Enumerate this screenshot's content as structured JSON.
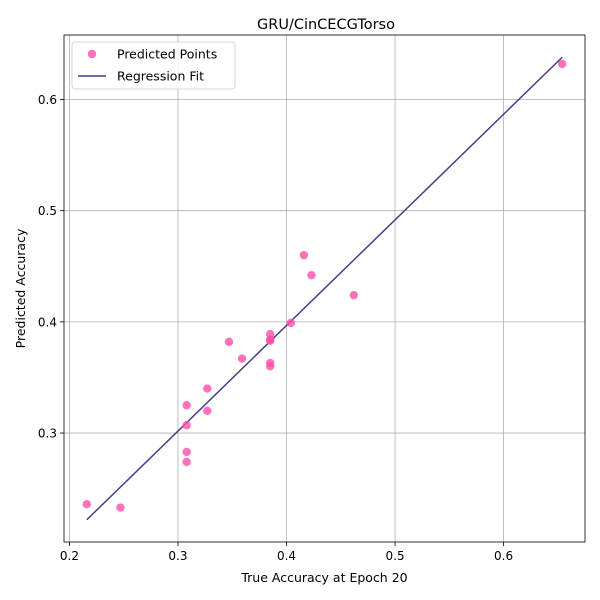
{
  "chart_data": {
    "type": "scatter",
    "title": "GRU/CinCECGTorso",
    "xlabel": "True Accuracy at Epoch 20",
    "ylabel": "Predicted Accuracy",
    "xlim": [
      0.195,
      0.675
    ],
    "ylim": [
      0.202,
      0.658
    ],
    "xticks": [
      0.2,
      0.3,
      0.4,
      0.5,
      0.6
    ],
    "yticks": [
      0.3,
      0.4,
      0.5,
      0.6
    ],
    "xtick_labels": [
      "0.2",
      "0.3",
      "0.4",
      "0.5",
      "0.6"
    ],
    "ytick_labels": [
      "0.3",
      "0.4",
      "0.5",
      "0.6"
    ],
    "grid": true,
    "legend_position": "top-left",
    "series": [
      {
        "name": "Predicted Points",
        "kind": "scatter",
        "color": "#ff4da6",
        "points": [
          [
            0.216,
            0.236
          ],
          [
            0.247,
            0.233
          ],
          [
            0.308,
            0.274
          ],
          [
            0.308,
            0.283
          ],
          [
            0.308,
            0.307
          ],
          [
            0.308,
            0.325
          ],
          [
            0.327,
            0.32
          ],
          [
            0.327,
            0.34
          ],
          [
            0.347,
            0.382
          ],
          [
            0.359,
            0.367
          ],
          [
            0.385,
            0.36
          ],
          [
            0.385,
            0.363
          ],
          [
            0.385,
            0.383
          ],
          [
            0.385,
            0.384
          ],
          [
            0.385,
            0.389
          ],
          [
            0.404,
            0.399
          ],
          [
            0.416,
            0.46
          ],
          [
            0.423,
            0.442
          ],
          [
            0.462,
            0.424
          ],
          [
            0.654,
            0.632
          ]
        ]
      },
      {
        "name": "Regression Fit",
        "kind": "line",
        "color": "#483d8b",
        "points": [
          [
            0.216,
            0.222
          ],
          [
            0.654,
            0.638
          ]
        ]
      }
    ]
  }
}
